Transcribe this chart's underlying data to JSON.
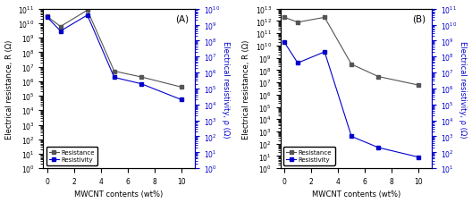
{
  "panel_A": {
    "label": "(A)",
    "x": [
      0,
      1,
      3,
      5,
      7,
      10
    ],
    "resistance": [
      30000000000.0,
      6000000000.0,
      80000000000.0,
      5000000.0,
      2000000.0,
      400000.0
    ],
    "resistivity": [
      3000000000.0,
      400000000.0,
      4000000000.0,
      500000.0,
      200000.0,
      20000.0
    ],
    "res_ylim_exp": [
      0,
      11
    ],
    "rho_ylim_exp": [
      0,
      10
    ]
  },
  "panel_B": {
    "label": "(B)",
    "x": [
      0,
      1,
      3,
      5,
      7,
      10
    ],
    "resistance": [
      2000000000000.0,
      800000000000.0,
      2000000000000.0,
      300000000.0,
      30000000.0,
      6000000.0
    ],
    "resistivity": [
      800000000.0,
      40000000.0,
      200000000.0,
      1000.0,
      200.0,
      50.0
    ],
    "res_ylim_exp": [
      0,
      13
    ],
    "rho_ylim_exp": [
      1,
      11
    ]
  },
  "xlabel": "MWCNT contents (wt%)",
  "ylabel_left": "Electrical resistance, R (Ω)",
  "ylabel_right": "Electrical resistivity, ρ (Ω)",
  "resistance_color": "#555555",
  "resistivity_color": "#0000cc",
  "legend_resistance": "Resistance",
  "legend_resistivity": "Resistivity",
  "xlim": [
    -0.3,
    11
  ],
  "xticks": [
    0,
    2,
    4,
    6,
    8,
    10
  ]
}
